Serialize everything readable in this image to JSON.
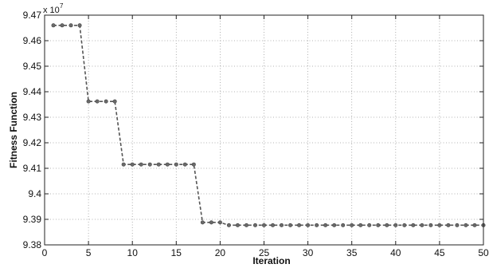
{
  "chart_data": {
    "type": "line",
    "xlabel": "Iteration",
    "ylabel": "Fitness Function",
    "y_exponent_base": "x 10",
    "y_exponent_power": "7",
    "xlim": [
      0,
      50
    ],
    "ylim": [
      9.38,
      9.47
    ],
    "x_ticks": [
      0,
      5,
      10,
      15,
      20,
      25,
      30,
      35,
      40,
      45,
      50
    ],
    "y_ticks": [
      9.38,
      9.39,
      9.4,
      9.41,
      9.42,
      9.43,
      9.44,
      9.45,
      9.46,
      9.47
    ],
    "y_tick_labels": [
      "9.38",
      "9.39",
      "9.4",
      "9.41",
      "9.42",
      "9.43",
      "9.44",
      "9.45",
      "9.46",
      "9.47"
    ],
    "grid": true,
    "line_color": "#555555",
    "marker_color": "#6a6a6a",
    "series": [
      {
        "x": [
          1,
          2,
          3,
          4,
          5,
          6,
          7,
          8,
          9,
          10,
          11,
          12,
          13,
          14,
          15,
          16,
          17,
          18,
          19,
          20,
          21,
          22,
          23,
          24,
          25,
          26,
          27,
          28,
          29,
          30,
          31,
          32,
          33,
          34,
          35,
          36,
          37,
          38,
          39,
          40,
          41,
          42,
          43,
          44,
          45,
          46,
          47,
          48,
          49,
          50
        ],
        "values": [
          9.466,
          9.466,
          9.466,
          9.466,
          9.4362,
          9.4362,
          9.4362,
          9.4362,
          9.4115,
          9.4115,
          9.4115,
          9.4115,
          9.4115,
          9.4115,
          9.4115,
          9.4115,
          9.4115,
          9.3888,
          9.3888,
          9.3888,
          9.3877,
          9.3877,
          9.3877,
          9.3877,
          9.3877,
          9.3877,
          9.3877,
          9.3877,
          9.3877,
          9.3877,
          9.3877,
          9.3877,
          9.3877,
          9.3877,
          9.3877,
          9.3877,
          9.3877,
          9.3877,
          9.3877,
          9.3877,
          9.3877,
          9.3877,
          9.3877,
          9.3877,
          9.3877,
          9.3877,
          9.3877,
          9.3877,
          9.3877,
          9.3877
        ]
      }
    ]
  }
}
